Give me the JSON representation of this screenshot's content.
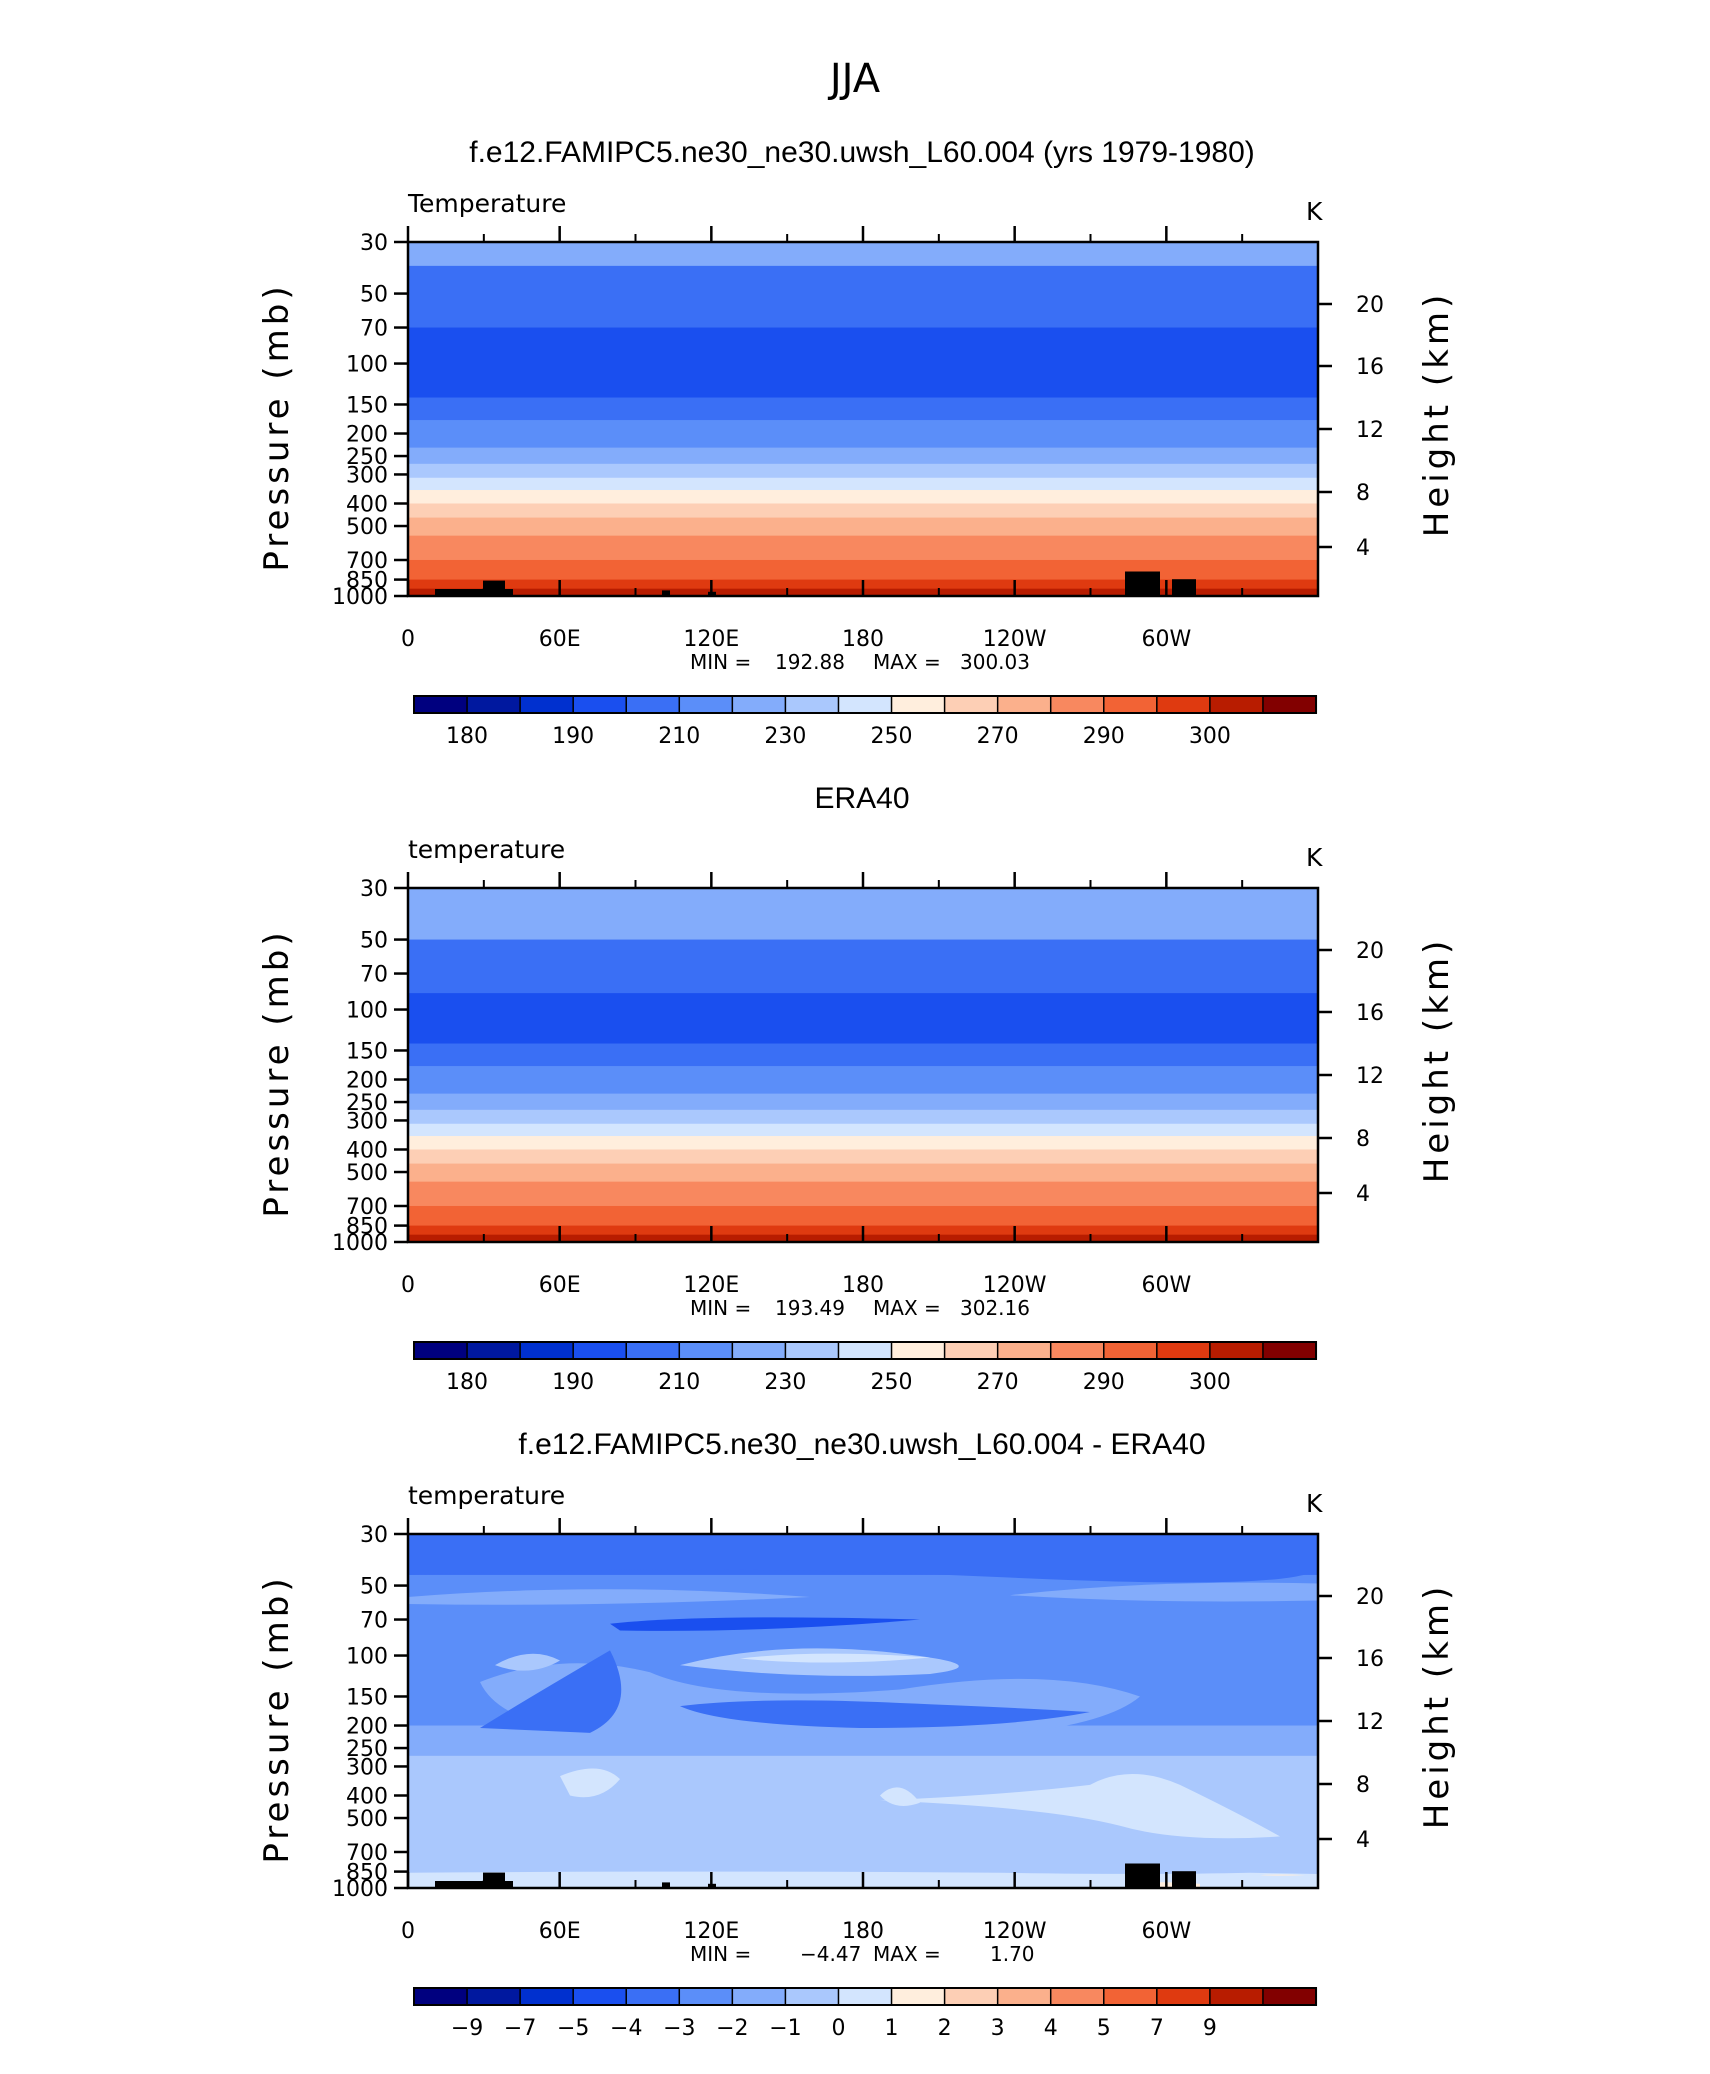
{
  "figure_title": "JJA",
  "chart_data": [
    {
      "type": "heatmap",
      "title": "f.e12.FAMIPC5.ne30_ne30.uwsh_L60.004 (yrs 1979-1980)",
      "left_label": "Temperature",
      "right_label": "K",
      "ylabel": "Pressure (mb)",
      "y2label": "Height (km)",
      "x_ticks": [
        "0",
        "60E",
        "120E",
        "180",
        "120W",
        "60W"
      ],
      "y_ticks": [
        "30",
        "50",
        "70",
        "100",
        "150",
        "200",
        "250",
        "300",
        "400",
        "500",
        "700",
        "850",
        "1000"
      ],
      "y2_ticks": [
        "20",
        "16",
        "12",
        "8",
        "4"
      ],
      "stats": {
        "min_label": "MIN =",
        "min": "192.88",
        "max_label": "MAX =",
        "max": "300.03"
      },
      "colorbar_labels": [
        "180",
        "190",
        "210",
        "230",
        "250",
        "270",
        "290",
        "300"
      ],
      "colors": [
        "#00007f",
        "#00189f",
        "#0030cf",
        "#1a4fef",
        "#3a6ff5",
        "#5b8ef9",
        "#83acfb",
        "#aac8fd",
        "#d3e5fe",
        "#ffeedd",
        "#fdcfb5",
        "#fbb08c",
        "#f8885f",
        "#f26335",
        "#df3a10",
        "#b81c00",
        "#820000"
      ],
      "bands": [
        {
          "top": "30",
          "bottom": "38",
          "color": "#83acfb"
        },
        {
          "top": "38",
          "bottom": "70",
          "color": "#3a6ff5"
        },
        {
          "top": "70",
          "bottom": "140",
          "color": "#1a4fef"
        },
        {
          "top": "140",
          "bottom": "175",
          "color": "#3a6ff5"
        },
        {
          "top": "175",
          "bottom": "230",
          "color": "#5b8ef9"
        },
        {
          "top": "230",
          "bottom": "270",
          "color": "#83acfb"
        },
        {
          "top": "270",
          "bottom": "310",
          "color": "#aac8fd"
        },
        {
          "top": "310",
          "bottom": "350",
          "color": "#d3e5fe"
        },
        {
          "top": "350",
          "bottom": "400",
          "color": "#ffeedd"
        },
        {
          "top": "400",
          "bottom": "460",
          "color": "#fdcfb5"
        },
        {
          "top": "460",
          "bottom": "550",
          "color": "#fbb08c"
        },
        {
          "top": "550",
          "bottom": "700",
          "color": "#f8885f"
        },
        {
          "top": "700",
          "bottom": "850",
          "color": "#f26335"
        },
        {
          "top": "850",
          "bottom": "930",
          "color": "#df3a10"
        },
        {
          "top": "930",
          "bottom": "1000",
          "color": "#b81c00"
        }
      ],
      "terrain": true
    },
    {
      "type": "heatmap",
      "title": "ERA40",
      "left_label": "temperature",
      "right_label": "K",
      "ylabel": "Pressure (mb)",
      "y2label": "Height (km)",
      "x_ticks": [
        "0",
        "60E",
        "120E",
        "180",
        "120W",
        "60W"
      ],
      "y_ticks": [
        "30",
        "50",
        "70",
        "100",
        "150",
        "200",
        "250",
        "300",
        "400",
        "500",
        "700",
        "850",
        "1000"
      ],
      "y2_ticks": [
        "20",
        "16",
        "12",
        "8",
        "4"
      ],
      "stats": {
        "min_label": "MIN =",
        "min": "193.49",
        "max_label": "MAX =",
        "max": "302.16"
      },
      "colorbar_labels": [
        "180",
        "190",
        "210",
        "230",
        "250",
        "270",
        "290",
        "300"
      ],
      "colors": [
        "#00007f",
        "#00189f",
        "#0030cf",
        "#1a4fef",
        "#3a6ff5",
        "#5b8ef9",
        "#83acfb",
        "#aac8fd",
        "#d3e5fe",
        "#ffeedd",
        "#fdcfb5",
        "#fbb08c",
        "#f8885f",
        "#f26335",
        "#df3a10",
        "#b81c00",
        "#820000"
      ],
      "bands": [
        {
          "top": "30",
          "bottom": "50",
          "color": "#83acfb"
        },
        {
          "top": "50",
          "bottom": "85",
          "color": "#3a6ff5"
        },
        {
          "top": "85",
          "bottom": "140",
          "color": "#1a4fef"
        },
        {
          "top": "140",
          "bottom": "175",
          "color": "#3a6ff5"
        },
        {
          "top": "175",
          "bottom": "230",
          "color": "#5b8ef9"
        },
        {
          "top": "230",
          "bottom": "270",
          "color": "#83acfb"
        },
        {
          "top": "270",
          "bottom": "310",
          "color": "#aac8fd"
        },
        {
          "top": "310",
          "bottom": "350",
          "color": "#d3e5fe"
        },
        {
          "top": "350",
          "bottom": "400",
          "color": "#ffeedd"
        },
        {
          "top": "400",
          "bottom": "460",
          "color": "#fdcfb5"
        },
        {
          "top": "460",
          "bottom": "550",
          "color": "#fbb08c"
        },
        {
          "top": "550",
          "bottom": "700",
          "color": "#f8885f"
        },
        {
          "top": "700",
          "bottom": "850",
          "color": "#f26335"
        },
        {
          "top": "850",
          "bottom": "930",
          "color": "#df3a10"
        },
        {
          "top": "930",
          "bottom": "1000",
          "color": "#b81c00"
        }
      ],
      "terrain": false
    },
    {
      "type": "heatmap",
      "title": "f.e12.FAMIPC5.ne30_ne30.uwsh_L60.004 - ERA40",
      "left_label": "temperature",
      "right_label": "K",
      "ylabel": "Pressure (mb)",
      "y2label": "Height (km)",
      "x_ticks": [
        "0",
        "60E",
        "120E",
        "180",
        "120W",
        "60W"
      ],
      "y_ticks": [
        "30",
        "50",
        "70",
        "100",
        "150",
        "200",
        "250",
        "300",
        "400",
        "500",
        "700",
        "850",
        "1000"
      ],
      "y2_ticks": [
        "20",
        "16",
        "12",
        "8",
        "4"
      ],
      "stats": {
        "min_label": "MIN =",
        "min": "−4.47",
        "max_label": "MAX =",
        "max": "1.70"
      },
      "colorbar_labels": [
        "−9",
        "−7",
        "−5",
        "−4",
        "−3",
        "−2",
        "−1",
        "0",
        "1",
        "2",
        "3",
        "4",
        "5",
        "7",
        "9"
      ],
      "colors": [
        "#00007f",
        "#00189f",
        "#0030cf",
        "#1a4fef",
        "#3a6ff5",
        "#5b8ef9",
        "#83acfb",
        "#aac8fd",
        "#d3e5fe",
        "#ffeedd",
        "#fdcfb5",
        "#fbb08c",
        "#f8885f",
        "#f26335",
        "#df3a10",
        "#b81c00",
        "#820000"
      ],
      "bands": [
        {
          "top": "30",
          "bottom": "45",
          "color": "#3a6ff5"
        },
        {
          "top": "45",
          "bottom": "200",
          "color": "#5b8ef9"
        },
        {
          "top": "200",
          "bottom": "270",
          "color": "#83acfb"
        },
        {
          "top": "270",
          "bottom": "1000",
          "color": "#aac8fd"
        }
      ],
      "terrain": true
    }
  ]
}
